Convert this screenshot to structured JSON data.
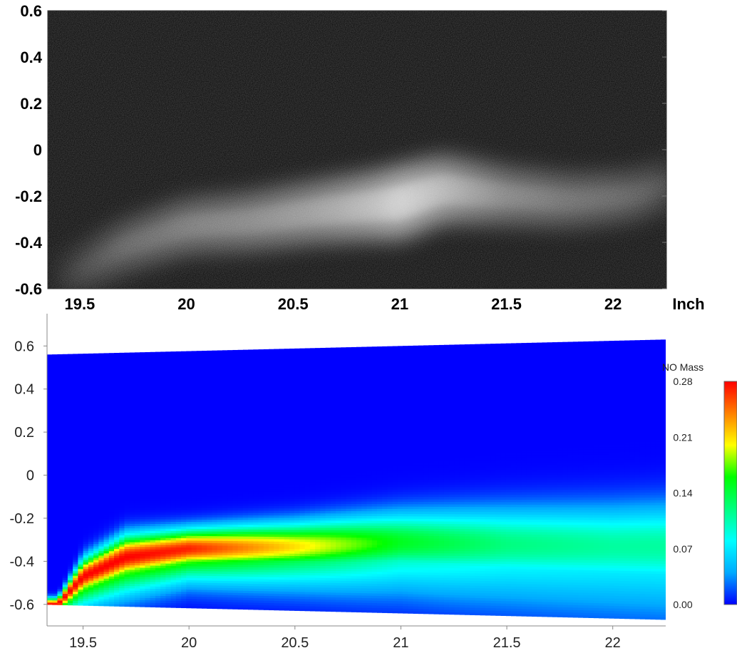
{
  "chart_data": [
    {
      "type": "heatmap",
      "kind": "grayscale experimental image",
      "xlim": [
        19.35,
        22.25
      ],
      "ylim": [
        -0.6,
        0.6
      ],
      "xticks": [
        "19.5",
        "20",
        "20.5",
        "21",
        "21.5",
        "22"
      ],
      "yticks": [
        "0.6",
        "0.4",
        "0.2",
        "0",
        "-0.2",
        "-0.4",
        "-0.6"
      ],
      "xunit": "Inch",
      "bright_band": {
        "x": [
          19.45,
          19.7,
          20.0,
          20.3,
          20.6,
          20.9,
          21.0,
          21.2,
          21.5,
          21.8,
          22.1,
          22.25
        ],
        "center_y": [
          -0.55,
          -0.42,
          -0.33,
          -0.31,
          -0.27,
          -0.24,
          -0.23,
          -0.17,
          -0.2,
          -0.22,
          -0.2,
          -0.15
        ],
        "intensity": [
          0.25,
          0.45,
          0.55,
          0.62,
          0.72,
          0.88,
          1.0,
          0.85,
          0.6,
          0.5,
          0.42,
          0.35
        ]
      }
    },
    {
      "type": "heatmap",
      "kind": "filled contour",
      "xlim": [
        19.33,
        22.25
      ],
      "ylim": [
        -0.7,
        0.75
      ],
      "xticks": [
        "19.5",
        "20",
        "20.5",
        "21",
        "21.5",
        "22"
      ],
      "yticks": [
        "0.6",
        "0.4",
        "0.2",
        "0",
        "-0.2",
        "-0.4",
        "-0.6"
      ],
      "colorbar": {
        "title": "NO Mass",
        "min": 0.0,
        "max": 0.28,
        "ticks": [
          "0.28",
          "0.21",
          "0.14",
          "0.07",
          "0.00"
        ],
        "colors": [
          "#0000ff",
          "#00aaff",
          "#00ffff",
          "#00ff80",
          "#00ff00",
          "#ffff00",
          "#ff8000",
          "#ff0000"
        ]
      },
      "domain_top_y": [
        0.56,
        0.63
      ],
      "domain_bottom_y": [
        -0.6,
        -0.67
      ],
      "plume_center": {
        "x": [
          19.38,
          19.5,
          19.7,
          20.0,
          20.5,
          21.0,
          21.5,
          22.0,
          22.25
        ],
        "y": [
          -0.6,
          -0.47,
          -0.38,
          -0.34,
          -0.33,
          -0.31,
          -0.32,
          -0.33,
          -0.33
        ]
      },
      "plume_peak_value": {
        "x": [
          19.38,
          19.5,
          19.7,
          20.0,
          20.5,
          21.0,
          21.5,
          22.0,
          22.25
        ],
        "value": [
          0.28,
          0.28,
          0.28,
          0.27,
          0.21,
          0.15,
          0.12,
          0.11,
          0.11
        ]
      },
      "plume_halfwidth": {
        "x": [
          19.38,
          19.5,
          19.7,
          20.0,
          20.5,
          21.0,
          21.5,
          22.0,
          22.25
        ],
        "value": [
          0.03,
          0.08,
          0.1,
          0.09,
          0.11,
          0.14,
          0.17,
          0.19,
          0.2
        ]
      }
    }
  ]
}
